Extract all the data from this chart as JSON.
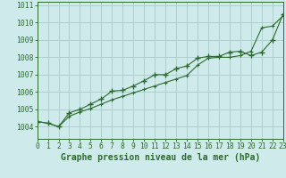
{
  "x": [
    0,
    1,
    2,
    3,
    4,
    5,
    6,
    7,
    8,
    9,
    10,
    11,
    12,
    13,
    14,
    15,
    16,
    17,
    18,
    19,
    20,
    21,
    22,
    23
  ],
  "line1_markers": [
    1004.3,
    1004.2,
    1004.0,
    1004.8,
    1005.0,
    1005.3,
    1005.6,
    1006.05,
    1006.1,
    1006.35,
    1006.65,
    1007.0,
    1007.0,
    1007.35,
    1007.5,
    1007.95,
    1008.05,
    1008.05,
    1008.3,
    1008.35,
    1008.1,
    1008.3,
    1009.0,
    1010.5
  ],
  "line2_smooth": [
    1004.3,
    1004.2,
    1004.0,
    1004.6,
    1004.85,
    1005.05,
    1005.3,
    1005.55,
    1005.75,
    1005.95,
    1006.15,
    1006.35,
    1006.55,
    1006.75,
    1006.95,
    1007.55,
    1007.95,
    1008.0,
    1008.0,
    1008.1,
    1008.35,
    1009.7,
    1009.8,
    1010.4
  ],
  "color": "#2d6b2d",
  "bg_color": "#ceeaea",
  "grid_color": "#a8cccc",
  "xlabel": "Graphe pression niveau de la mer (hPa)",
  "ylim_min": 1003.3,
  "ylim_max": 1011.2,
  "yticks": [
    1004,
    1005,
    1006,
    1007,
    1008,
    1009,
    1010,
    1011
  ],
  "xlim_min": 0,
  "xlim_max": 23,
  "label_fontsize": 7,
  "tick_fontsize": 5.8
}
